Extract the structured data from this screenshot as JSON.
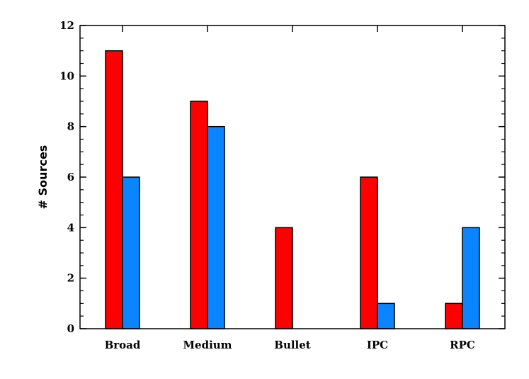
{
  "chart_data": {
    "type": "bar",
    "title": "",
    "xlabel": "",
    "ylabel": "# Sources",
    "categories": [
      "Broad",
      "Medium",
      "Bullet",
      "IPC",
      "RPC"
    ],
    "series": [
      {
        "values": [
          11,
          9,
          4,
          6,
          1
        ],
        "color": "#ff0000"
      },
      {
        "values": [
          6,
          8,
          0,
          1,
          4
        ],
        "color": "#0a84ff"
      }
    ],
    "ylim": [
      0,
      12
    ],
    "yticks": [
      0,
      2,
      4,
      6,
      8,
      10,
      12
    ],
    "grid": false,
    "legend": "none"
  }
}
